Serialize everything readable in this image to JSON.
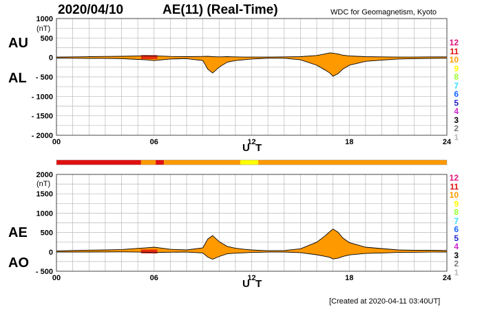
{
  "header": {
    "date": "2020/04/10",
    "title": "AE(11) (Real-Time)",
    "source": "WDC for Geomagnetism, Kyoto",
    "footer": "[Created at 2020-04-11 03:40UT]"
  },
  "panels": {
    "top": {
      "label_upper": "AU",
      "label_lower": "AL",
      "unit": "(nT)",
      "xlabel": "U T"
    },
    "bottom": {
      "label_upper": "AE",
      "label_lower": "AO",
      "unit": "(nT)",
      "xlabel": "U T"
    }
  },
  "legend": [
    {
      "label": "12",
      "color": "#e0107a"
    },
    {
      "label": "11",
      "color": "#e01010"
    },
    {
      "label": "10",
      "color": "#ff9900"
    },
    {
      "label": "9",
      "color": "#ffff00"
    },
    {
      "label": "8",
      "color": "#99ff33"
    },
    {
      "label": "7",
      "color": "#33ddff"
    },
    {
      "label": "6",
      "color": "#1166ff"
    },
    {
      "label": "5",
      "color": "#2222cc"
    },
    {
      "label": "4",
      "color": "#cc22cc"
    },
    {
      "label": "3",
      "color": "#000000"
    },
    {
      "label": "2",
      "color": "#777777"
    },
    {
      "label": "1",
      "color": "#bbbbbb"
    }
  ],
  "station_bar": [
    {
      "from": 0,
      "to": 5.2,
      "color": "#e01010"
    },
    {
      "from": 5.2,
      "to": 6.1,
      "color": "#ff9900"
    },
    {
      "from": 6.1,
      "to": 6.6,
      "color": "#e01010"
    },
    {
      "from": 6.6,
      "to": 11.3,
      "color": "#ff9900"
    },
    {
      "from": 11.3,
      "to": 12.4,
      "color": "#ffff00"
    },
    {
      "from": 12.4,
      "to": 24,
      "color": "#ff9900"
    }
  ],
  "chart_data": [
    {
      "type": "area",
      "panel": "AU/AL",
      "xlabel": "U T",
      "ylabel": "(nT)",
      "xlim": [
        0,
        24
      ],
      "ylim": [
        -2000,
        1000
      ],
      "xticks": [
        "00",
        "06",
        "12",
        "18",
        "24"
      ],
      "yticks": [
        "1000",
        "500",
        "0",
        "- 500",
        "- 1000",
        "- 1500",
        "- 2000"
      ],
      "x": [
        0,
        1,
        2,
        3,
        4,
        5,
        5.5,
        6,
        6.5,
        7,
        8,
        9,
        9.3,
        9.6,
        10,
        10.5,
        11,
        11.5,
        12,
        13,
        14,
        15,
        16,
        16.5,
        16.8,
        17,
        17.3,
        17.6,
        18,
        18.5,
        19,
        20,
        21,
        22,
        23,
        24
      ],
      "series": [
        {
          "name": "AU",
          "values": [
            10,
            15,
            20,
            25,
            30,
            40,
            45,
            40,
            35,
            25,
            20,
            25,
            30,
            20,
            15,
            20,
            15,
            10,
            10,
            10,
            15,
            20,
            50,
            90,
            120,
            110,
            90,
            60,
            40,
            30,
            20,
            15,
            10,
            10,
            15,
            15
          ]
        },
        {
          "name": "AL",
          "values": [
            -15,
            -20,
            -25,
            -25,
            -30,
            -50,
            -60,
            -80,
            -60,
            -40,
            -30,
            -80,
            -300,
            -400,
            -250,
            -120,
            -80,
            -60,
            -40,
            -20,
            -20,
            -60,
            -200,
            -320,
            -400,
            -480,
            -420,
            -300,
            -200,
            -150,
            -100,
            -70,
            -40,
            -30,
            -25,
            -20
          ]
        }
      ]
    },
    {
      "type": "area",
      "panel": "AE/AO",
      "xlabel": "U T",
      "ylabel": "(nT)",
      "xlim": [
        0,
        24
      ],
      "ylim": [
        -500,
        2000
      ],
      "xticks": [
        "00",
        "06",
        "12",
        "18",
        "24"
      ],
      "yticks": [
        "2000",
        "1500",
        "1000",
        "500",
        "0",
        "- 500"
      ],
      "x": [
        0,
        1,
        2,
        3,
        4,
        5,
        5.5,
        6,
        6.5,
        7,
        8,
        9,
        9.3,
        9.6,
        10,
        10.5,
        11,
        11.5,
        12,
        13,
        14,
        15,
        16,
        16.5,
        16.8,
        17,
        17.3,
        17.6,
        18,
        18.5,
        19,
        20,
        21,
        22,
        23,
        24
      ],
      "series": [
        {
          "name": "AE",
          "values": [
            25,
            35,
            45,
            50,
            60,
            90,
            105,
            120,
            95,
            65,
            50,
            105,
            330,
            420,
            265,
            140,
            95,
            70,
            50,
            30,
            35,
            80,
            250,
            410,
            520,
            590,
            510,
            360,
            240,
            180,
            120,
            85,
            50,
            40,
            40,
            35
          ]
        },
        {
          "name": "AO",
          "values": [
            -3,
            -3,
            -3,
            -1,
            0,
            -5,
            -8,
            -20,
            -13,
            -8,
            -5,
            -28,
            -135,
            -190,
            -118,
            -50,
            -33,
            -25,
            -15,
            -5,
            -3,
            -20,
            -75,
            -115,
            -140,
            -185,
            -165,
            -120,
            -80,
            -60,
            -40,
            -28,
            -15,
            -10,
            -5,
            -3
          ]
        }
      ]
    }
  ]
}
